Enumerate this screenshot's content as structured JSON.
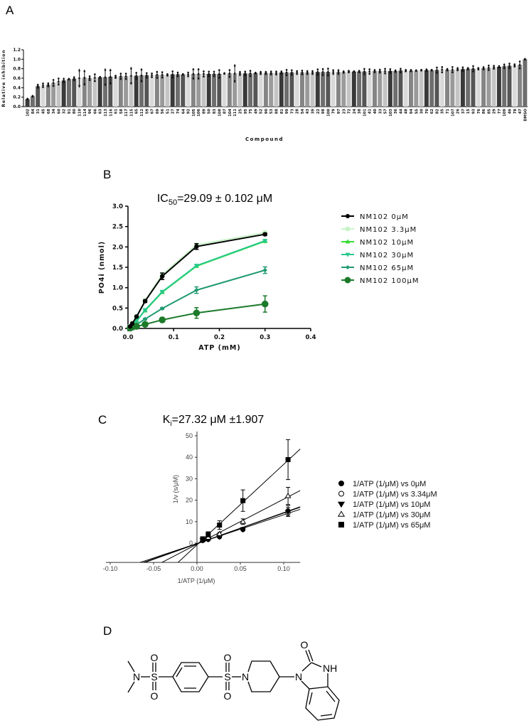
{
  "panel_labels": {
    "a": "A",
    "b": "B",
    "c": "C",
    "d": "D"
  },
  "chart_data": [
    {
      "type": "bar",
      "panel": "A",
      "xlabel": "Compound",
      "ylabel": "Relative inhibition",
      "ylim": [
        0,
        1.2
      ],
      "yticks": [
        "0.0",
        "0.2",
        "0.4",
        "0.6",
        "0.8",
        "1.0",
        "1.2"
      ],
      "bar_colors": [
        "#3a3a3a",
        "#9a9a9a",
        "#d9d9d9",
        "#6e6e6e",
        "#c4c4c4",
        "#858585",
        "#555555"
      ],
      "categories": [
        "102",
        "84",
        "31",
        "45",
        "68",
        "34",
        "60",
        "32",
        "91",
        "80",
        "110",
        "114",
        "96",
        "66",
        "63",
        "113",
        "116",
        "61",
        "58",
        "117",
        "115",
        "65",
        "112",
        "59",
        "67",
        "69",
        "56",
        "51",
        "27",
        "74",
        "64",
        "92",
        "105",
        "106",
        "89",
        "50",
        "83",
        "108",
        "87",
        "104",
        "111",
        "25",
        "95",
        "75",
        "49",
        "52",
        "90",
        "53",
        "88",
        "81",
        "99",
        "73",
        "28",
        "54",
        "43",
        "39",
        "22",
        "98",
        "100",
        "79",
        "97",
        "23",
        "72",
        "24",
        "38",
        "101",
        "41",
        "40",
        "33",
        "57",
        "103",
        "36",
        "44",
        "48",
        "94",
        "55",
        "30",
        "70",
        "62",
        "82",
        "35",
        "71",
        "107",
        "26",
        "37",
        "15",
        "93",
        "76",
        "86",
        "85",
        "29",
        "77",
        "109",
        "46",
        "78",
        "47",
        "DMSO"
      ],
      "values": [
        0.16,
        0.22,
        0.43,
        0.45,
        0.46,
        0.5,
        0.53,
        0.55,
        0.58,
        0.59,
        0.6,
        0.61,
        0.6,
        0.61,
        0.62,
        0.62,
        0.63,
        0.63,
        0.64,
        0.64,
        0.65,
        0.65,
        0.66,
        0.66,
        0.66,
        0.67,
        0.67,
        0.67,
        0.68,
        0.68,
        0.68,
        0.68,
        0.69,
        0.69,
        0.69,
        0.69,
        0.69,
        0.69,
        0.7,
        0.7,
        0.7,
        0.7,
        0.7,
        0.7,
        0.71,
        0.71,
        0.71,
        0.71,
        0.71,
        0.72,
        0.72,
        0.72,
        0.72,
        0.72,
        0.72,
        0.72,
        0.73,
        0.73,
        0.73,
        0.73,
        0.73,
        0.73,
        0.74,
        0.74,
        0.74,
        0.74,
        0.74,
        0.75,
        0.75,
        0.75,
        0.75,
        0.75,
        0.76,
        0.76,
        0.76,
        0.76,
        0.77,
        0.77,
        0.77,
        0.77,
        0.78,
        0.78,
        0.78,
        0.79,
        0.79,
        0.8,
        0.8,
        0.8,
        0.81,
        0.82,
        0.83,
        0.84,
        0.85,
        0.86,
        0.87,
        0.88,
        1.0
      ],
      "errors": [
        0.01,
        0.01,
        0.04,
        0.05,
        0.04,
        0.08,
        0.08,
        0.05,
        0.01,
        0.04,
        0.2,
        0.17,
        0.05,
        0.09,
        0.01,
        0.19,
        0.17,
        0.03,
        0.07,
        0.07,
        0.19,
        0.08,
        0.15,
        0.06,
        0.05,
        0.08,
        0.07,
        0.02,
        0.08,
        0.05,
        0.01,
        0.05,
        0.12,
        0.12,
        0.07,
        0.06,
        0.06,
        0.1,
        0.01,
        0.09,
        0.2,
        0.04,
        0.05,
        0.07,
        0.01,
        0.03,
        0.03,
        0.04,
        0.04,
        0.03,
        0.07,
        0.06,
        0.04,
        0.05,
        0.04,
        0.04,
        0.07,
        0.08,
        0.09,
        0.05,
        0.05,
        0.02,
        0.02,
        0.01,
        0.02,
        0.07,
        0.06,
        0.03,
        0.04,
        0.06,
        0.05,
        0.02,
        0.05,
        0.02,
        0.02,
        0.01,
        0.01,
        0.02,
        0.01,
        0.07,
        0.07,
        0.02,
        0.07,
        0.03,
        0.05,
        0.02,
        0.07,
        0.02,
        0.03,
        0.06,
        0.04,
        0.02,
        0.05,
        0.06,
        0.03,
        0.09,
        0.01
      ]
    },
    {
      "type": "line",
      "panel": "B",
      "title": {
        "prefix": "IC",
        "sub": "50",
        "rest": "=29.09 ± 0.102 μM"
      },
      "xlabel": "ATP (mM)",
      "ylabel": "PO4i (nmol)",
      "xlim": [
        0,
        0.4
      ],
      "ylim": [
        0,
        3.0
      ],
      "xticks": [
        "0.0",
        "0.1",
        "0.2",
        "0.3",
        "0.4"
      ],
      "yticks": [
        "0.0",
        "0.5",
        "1.0",
        "1.5",
        "2.0",
        "2.5",
        "3.0"
      ],
      "legend_position": "right",
      "x": [
        0.0047,
        0.0094,
        0.0188,
        0.0375,
        0.075,
        0.15,
        0.3
      ],
      "series": [
        {
          "name": "NM102 0μM",
          "color": "#000000",
          "marker": "circle",
          "values": [
            0.05,
            0.12,
            0.29,
            0.67,
            1.28,
            2.01,
            2.31
          ],
          "errors": [
            0.01,
            0.01,
            0.02,
            0.03,
            0.08,
            0.07,
            0.03
          ]
        },
        {
          "name": "NM102 3.3μM",
          "color": "#c9f3c9",
          "marker": "square",
          "values": [
            0.05,
            0.13,
            0.3,
            0.69,
            1.32,
            2.05,
            2.35
          ],
          "errors": [
            0,
            0,
            0,
            0,
            0,
            0,
            0
          ]
        },
        {
          "name": "NM102 10μM",
          "color": "#33dd33",
          "marker": "triangle-up",
          "values": [
            0.04,
            0.09,
            0.19,
            0.44,
            0.89,
            1.53,
            2.14
          ],
          "errors": [
            0,
            0,
            0,
            0,
            0,
            0,
            0
          ]
        },
        {
          "name": "NM102 30μM",
          "color": "#27c98c",
          "marker": "triangle-down",
          "values": [
            0.03,
            0.08,
            0.18,
            0.45,
            0.9,
            1.54,
            2.15
          ],
          "errors": [
            0,
            0,
            0,
            0.02,
            0.02,
            0.02,
            0.02
          ]
        },
        {
          "name": "NM102 65μM",
          "color": "#1f9a72",
          "marker": "diamond",
          "values": [
            0.02,
            0.05,
            0.1,
            0.23,
            0.49,
            0.94,
            1.43
          ],
          "errors": [
            0,
            0,
            0,
            0.02,
            0.02,
            0.08,
            0.08
          ]
        },
        {
          "name": "NM102 100μM",
          "color": "#1c7a2a",
          "marker": "circle-large",
          "values": [
            0.01,
            0.03,
            0.05,
            0.1,
            0.21,
            0.38,
            0.6
          ],
          "errors": [
            0,
            0,
            0.01,
            0.02,
            0.06,
            0.13,
            0.2
          ]
        }
      ]
    },
    {
      "type": "scatter",
      "panel": "C",
      "title": {
        "prefix": "K",
        "sub": "i",
        "rest": "=27.32 μM ±1.907"
      },
      "xlabel": "1/ATP (1/μM)",
      "ylabel": "1/v (s/μM)",
      "xlim": [
        -0.105,
        0.119
      ],
      "ylim": [
        -9,
        52
      ],
      "xticks": [
        "-0.10",
        "-0.05",
        "0.00",
        "0.05",
        "0.10"
      ],
      "yticks": [
        "0",
        "10",
        "20",
        "30",
        "40",
        "50"
      ],
      "legend_position": "right",
      "x": [
        0.0066,
        0.013,
        0.026,
        0.053,
        0.105
      ],
      "series": [
        {
          "name": "1/ATP (1/μM) vs 0μM",
          "marker": "circle-filled",
          "values": [
            1.2,
            1.7,
            2.9,
            6.3,
            15.0
          ],
          "errors": [
            0.3,
            0.3,
            0.4,
            0.5,
            2.5
          ],
          "fit": {
            "intercept": -0.2,
            "slope": 142
          }
        },
        {
          "name": "1/ATP (1/μM) vs 3.34μM",
          "marker": "circle-open",
          "values": [
            1.4,
            2.2,
            3.2,
            6.5,
            14.0
          ],
          "errors": [
            0.3,
            0.3,
            0.4,
            0.5,
            1.5
          ],
          "fit": {
            "intercept": -0.2,
            "slope": 134
          }
        },
        {
          "name": "1/ATP (1/μM) vs 10μM",
          "marker": "triangle-down-filled",
          "values": [
            1.3,
            1.8,
            3.0,
            6.4,
            14.5
          ],
          "errors": [
            0.3,
            0.3,
            0.4,
            0.5,
            2.0
          ],
          "fit": {
            "intercept": -0.3,
            "slope": 145
          }
        },
        {
          "name": "1/ATP (1/μM) vs 30μM",
          "marker": "triangle-up-open",
          "values": [
            1.5,
            2.6,
            4.3,
            10.0,
            22.0
          ],
          "errors": [
            0.4,
            0.5,
            0.7,
            1.3,
            4.0
          ],
          "fit": {
            "intercept": -0.5,
            "slope": 210
          }
        },
        {
          "name": "1/ATP (1/μM) vs 65μM",
          "marker": "square-filled",
          "values": [
            2.0,
            4.1,
            8.4,
            19.8,
            38.9
          ],
          "errors": [
            0.8,
            1.2,
            2.0,
            5.0,
            9.3
          ],
          "fit": {
            "intercept": -0.8,
            "slope": 375
          }
        }
      ]
    }
  ],
  "molecule": {
    "atoms": {
      "n1": "N",
      "s1": "S",
      "s1_o_top": "O",
      "s1_o_bot": "O",
      "s2": "S",
      "s2_o_top": "O",
      "s2_o_bot": "O",
      "n_pip": "N",
      "n_imid": "N",
      "o_carbonyl": "O",
      "nh": "NH"
    }
  }
}
